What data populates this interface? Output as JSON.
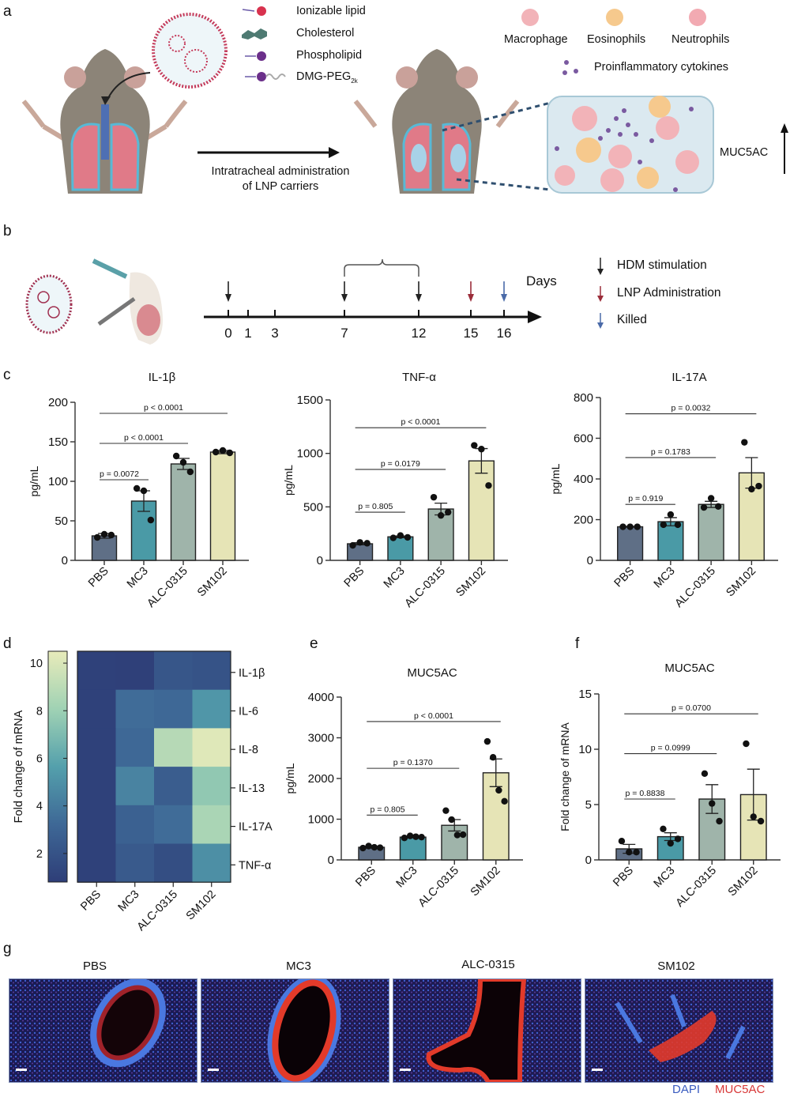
{
  "panels": {
    "a": {
      "letter": "a",
      "lnp_components": [
        {
          "label": "Ionizable lipid",
          "subscript": "",
          "color": "#d8324e"
        },
        {
          "label": "Cholesterol",
          "subscript": "",
          "color": "#4e7a72"
        },
        {
          "label": "Phospholipid",
          "subscript": "",
          "color": "#6b2f8a"
        },
        {
          "label": "DMG-PEG",
          "subscript": "2k",
          "color": "#6b2f8a"
        }
      ],
      "cells": [
        {
          "label": "Macrophage",
          "color": "#f2b3b8"
        },
        {
          "label": "Eosinophils",
          "color": "#f6c98d"
        },
        {
          "label": "Neutrophils",
          "color": "#f2aab2"
        }
      ],
      "cytokines_label": "Proinflammatory cytokines",
      "arrow_caption_line1": "Intratracheal administration",
      "arrow_caption_line2": "of LNP carriers",
      "muc5ac_label": "MUC5AC"
    },
    "b": {
      "letter": "b",
      "axis_label": "Days",
      "ticks": [
        "0",
        "1",
        "3",
        "7",
        "12",
        "15",
        "16"
      ],
      "events": [
        {
          "day": "0",
          "type": "HDM stimulation"
        },
        {
          "day": "7",
          "type": "HDM stimulation"
        },
        {
          "day": "12",
          "type": "HDM stimulation"
        },
        {
          "day": "15",
          "type": "LNP Administration"
        },
        {
          "day": "16",
          "type": "Killed"
        }
      ],
      "legend": [
        {
          "label": "HDM stimulation",
          "color": "#222222"
        },
        {
          "label": "LNP Administration",
          "color": "#9b2d3a"
        },
        {
          "label": "Killed",
          "color": "#4a6aa8"
        }
      ]
    },
    "c_letter": "c",
    "d_letter": "d",
    "e_letter": "e",
    "f_letter": "f",
    "g": {
      "letter": "g",
      "titles": [
        "PBS",
        "MC3",
        "ALC-0315",
        "SM102"
      ],
      "channel_dapi": "DAPI",
      "channel_muc5ac": "MUC5AC",
      "dapi_color": "#3a5cc0",
      "muc5ac_color": "#d83838"
    }
  },
  "chart_data": [
    {
      "id": "c1",
      "type": "bar",
      "title": "IL-1β",
      "ylabel": "pg/mL",
      "xlabel": "",
      "categories": [
        "PBS",
        "MC3",
        "ALC-0315",
        "SM102"
      ],
      "values": [
        31,
        75,
        122,
        137
      ],
      "sem": [
        3,
        13,
        7,
        2
      ],
      "points": [
        [
          29,
          33,
          32
        ],
        [
          91,
          88,
          51
        ],
        [
          132,
          124,
          112
        ],
        [
          137,
          139,
          136
        ]
      ],
      "ylim": [
        0,
        200
      ],
      "yticks": [
        0,
        50,
        100,
        150,
        200
      ],
      "brackets": [
        {
          "from": 0,
          "to": 1,
          "label": "p = 0.0072",
          "y": 102
        },
        {
          "from": 0,
          "to": 2,
          "label": "p < 0.0001",
          "y": 148
        },
        {
          "from": 0,
          "to": 3,
          "label": "p < 0.0001",
          "y": 186
        }
      ],
      "colors": [
        "#5f6f86",
        "#4a9aa6",
        "#9fb4aa",
        "#e6e4b6"
      ]
    },
    {
      "id": "c2",
      "type": "bar",
      "title": "TNF-α",
      "ylabel": "pg/mL",
      "xlabel": "",
      "categories": [
        "PBS",
        "MC3",
        "ALC-0315",
        "SM102"
      ],
      "values": [
        155,
        220,
        480,
        930
      ],
      "sem": [
        10,
        8,
        55,
        115
      ],
      "points": [
        [
          140,
          168,
          160
        ],
        [
          210,
          232,
          215
        ],
        [
          590,
          420,
          450
        ],
        [
          1075,
          1040,
          700
        ]
      ],
      "ylim": [
        0,
        1500
      ],
      "yticks": [
        0,
        500,
        1000,
        1500
      ],
      "brackets": [
        {
          "from": 0,
          "to": 1,
          "label": "p = 0.805",
          "y": 450
        },
        {
          "from": 0,
          "to": 2,
          "label": "p = 0.0179",
          "y": 850
        },
        {
          "from": 0,
          "to": 3,
          "label": "p < 0.0001",
          "y": 1240
        }
      ],
      "colors": [
        "#5f6f86",
        "#4a9aa6",
        "#9fb4aa",
        "#e6e4b6"
      ]
    },
    {
      "id": "c3",
      "type": "bar",
      "title": "IL-17A",
      "ylabel": "pg/mL",
      "xlabel": "",
      "categories": [
        "PBS",
        "MC3",
        "ALC-0315",
        "SM102"
      ],
      "values": [
        165,
        190,
        275,
        430
      ],
      "sem": [
        2,
        20,
        15,
        75
      ],
      "points": [
        [
          165,
          165,
          165
        ],
        [
          175,
          225,
          175
        ],
        [
          260,
          305,
          265
        ],
        [
          580,
          350,
          365
        ]
      ],
      "ylim": [
        0,
        800
      ],
      "yticks": [
        0,
        200,
        400,
        600,
        800
      ],
      "brackets": [
        {
          "from": 0,
          "to": 1,
          "label": "p = 0.919",
          "y": 275
        },
        {
          "from": 0,
          "to": 2,
          "label": "p = 0.1783",
          "y": 505
        },
        {
          "from": 0,
          "to": 3,
          "label": "p = 0.0032",
          "y": 720
        }
      ],
      "colors": [
        "#5f6f86",
        "#4a9aa6",
        "#9fb4aa",
        "#e6e4b6"
      ]
    },
    {
      "id": "d",
      "type": "heatmap",
      "title": "",
      "colorbar_label": "Fold change of mRNA",
      "colorbar_ticks": [
        2,
        4,
        6,
        8,
        10
      ],
      "colorbar_range": [
        0.8,
        10.5
      ],
      "columns": [
        "PBS",
        "MC3",
        "ALC-0315",
        "SM102"
      ],
      "rows": [
        "IL-1β",
        "IL-6",
        "IL-8",
        "IL-13",
        "IL-17A",
        "TNF-α"
      ],
      "values": [
        [
          1.0,
          0.9,
          2.2,
          2.0
        ],
        [
          1.0,
          3.4,
          3.2,
          5.2
        ],
        [
          1.0,
          3.2,
          8.8,
          10.2
        ],
        [
          1.0,
          4.4,
          2.6,
          7.6
        ],
        [
          1.0,
          2.8,
          3.4,
          8.4
        ],
        [
          1.0,
          2.4,
          1.7,
          4.9
        ]
      ]
    },
    {
      "id": "e",
      "type": "bar",
      "title": "MUC5AC",
      "ylabel": "pg/mL",
      "xlabel": "",
      "categories": [
        "PBS",
        "MC3",
        "ALC-0315",
        "SM102"
      ],
      "values": [
        310,
        560,
        850,
        2140
      ],
      "sem": [
        20,
        15,
        140,
        340
      ],
      "points": [
        [
          290,
          340,
          310,
          300
        ],
        [
          540,
          590,
          570,
          560
        ],
        [
          1210,
          990,
          610,
          620
        ],
        [
          2910,
          2520,
          1710,
          1440
        ]
      ],
      "ylim": [
        0,
        4000
      ],
      "yticks": [
        0,
        1000,
        2000,
        3000,
        4000
      ],
      "brackets": [
        {
          "from": 0,
          "to": 1,
          "label": "p = 0.805",
          "y": 1100
        },
        {
          "from": 0,
          "to": 2,
          "label": "p = 0.1370",
          "y": 2250
        },
        {
          "from": 0,
          "to": 3,
          "label": "p < 0.0001",
          "y": 3400
        }
      ],
      "colors": [
        "#5f6f86",
        "#4a9aa6",
        "#9fb4aa",
        "#e6e4b6"
      ]
    },
    {
      "id": "f",
      "type": "bar",
      "title": "MUC5AC",
      "ylabel": "Fold change of mRNA",
      "xlabel": "",
      "categories": [
        "PBS",
        "MC3",
        "ALC-0315",
        "SM102"
      ],
      "values": [
        1.0,
        2.1,
        5.5,
        5.9
      ],
      "sem": [
        0.4,
        0.35,
        1.3,
        2.3
      ],
      "points": [
        [
          1.7,
          0.7,
          0.7
        ],
        [
          2.8,
          1.5,
          1.9
        ],
        [
          7.8,
          5.1,
          3.5
        ],
        [
          10.5,
          3.9,
          3.5
        ]
      ],
      "ylim": [
        0,
        15
      ],
      "yticks": [
        0,
        5,
        10,
        15
      ],
      "brackets": [
        {
          "from": 0,
          "to": 1,
          "label": "p = 0.8838",
          "y": 5.5
        },
        {
          "from": 0,
          "to": 2,
          "label": "p = 0.0999",
          "y": 9.6
        },
        {
          "from": 0,
          "to": 3,
          "label": "p = 0.0700",
          "y": 13.2
        }
      ],
      "colors": [
        "#5f6f86",
        "#4a9aa6",
        "#9fb4aa",
        "#e6e4b6"
      ]
    }
  ]
}
